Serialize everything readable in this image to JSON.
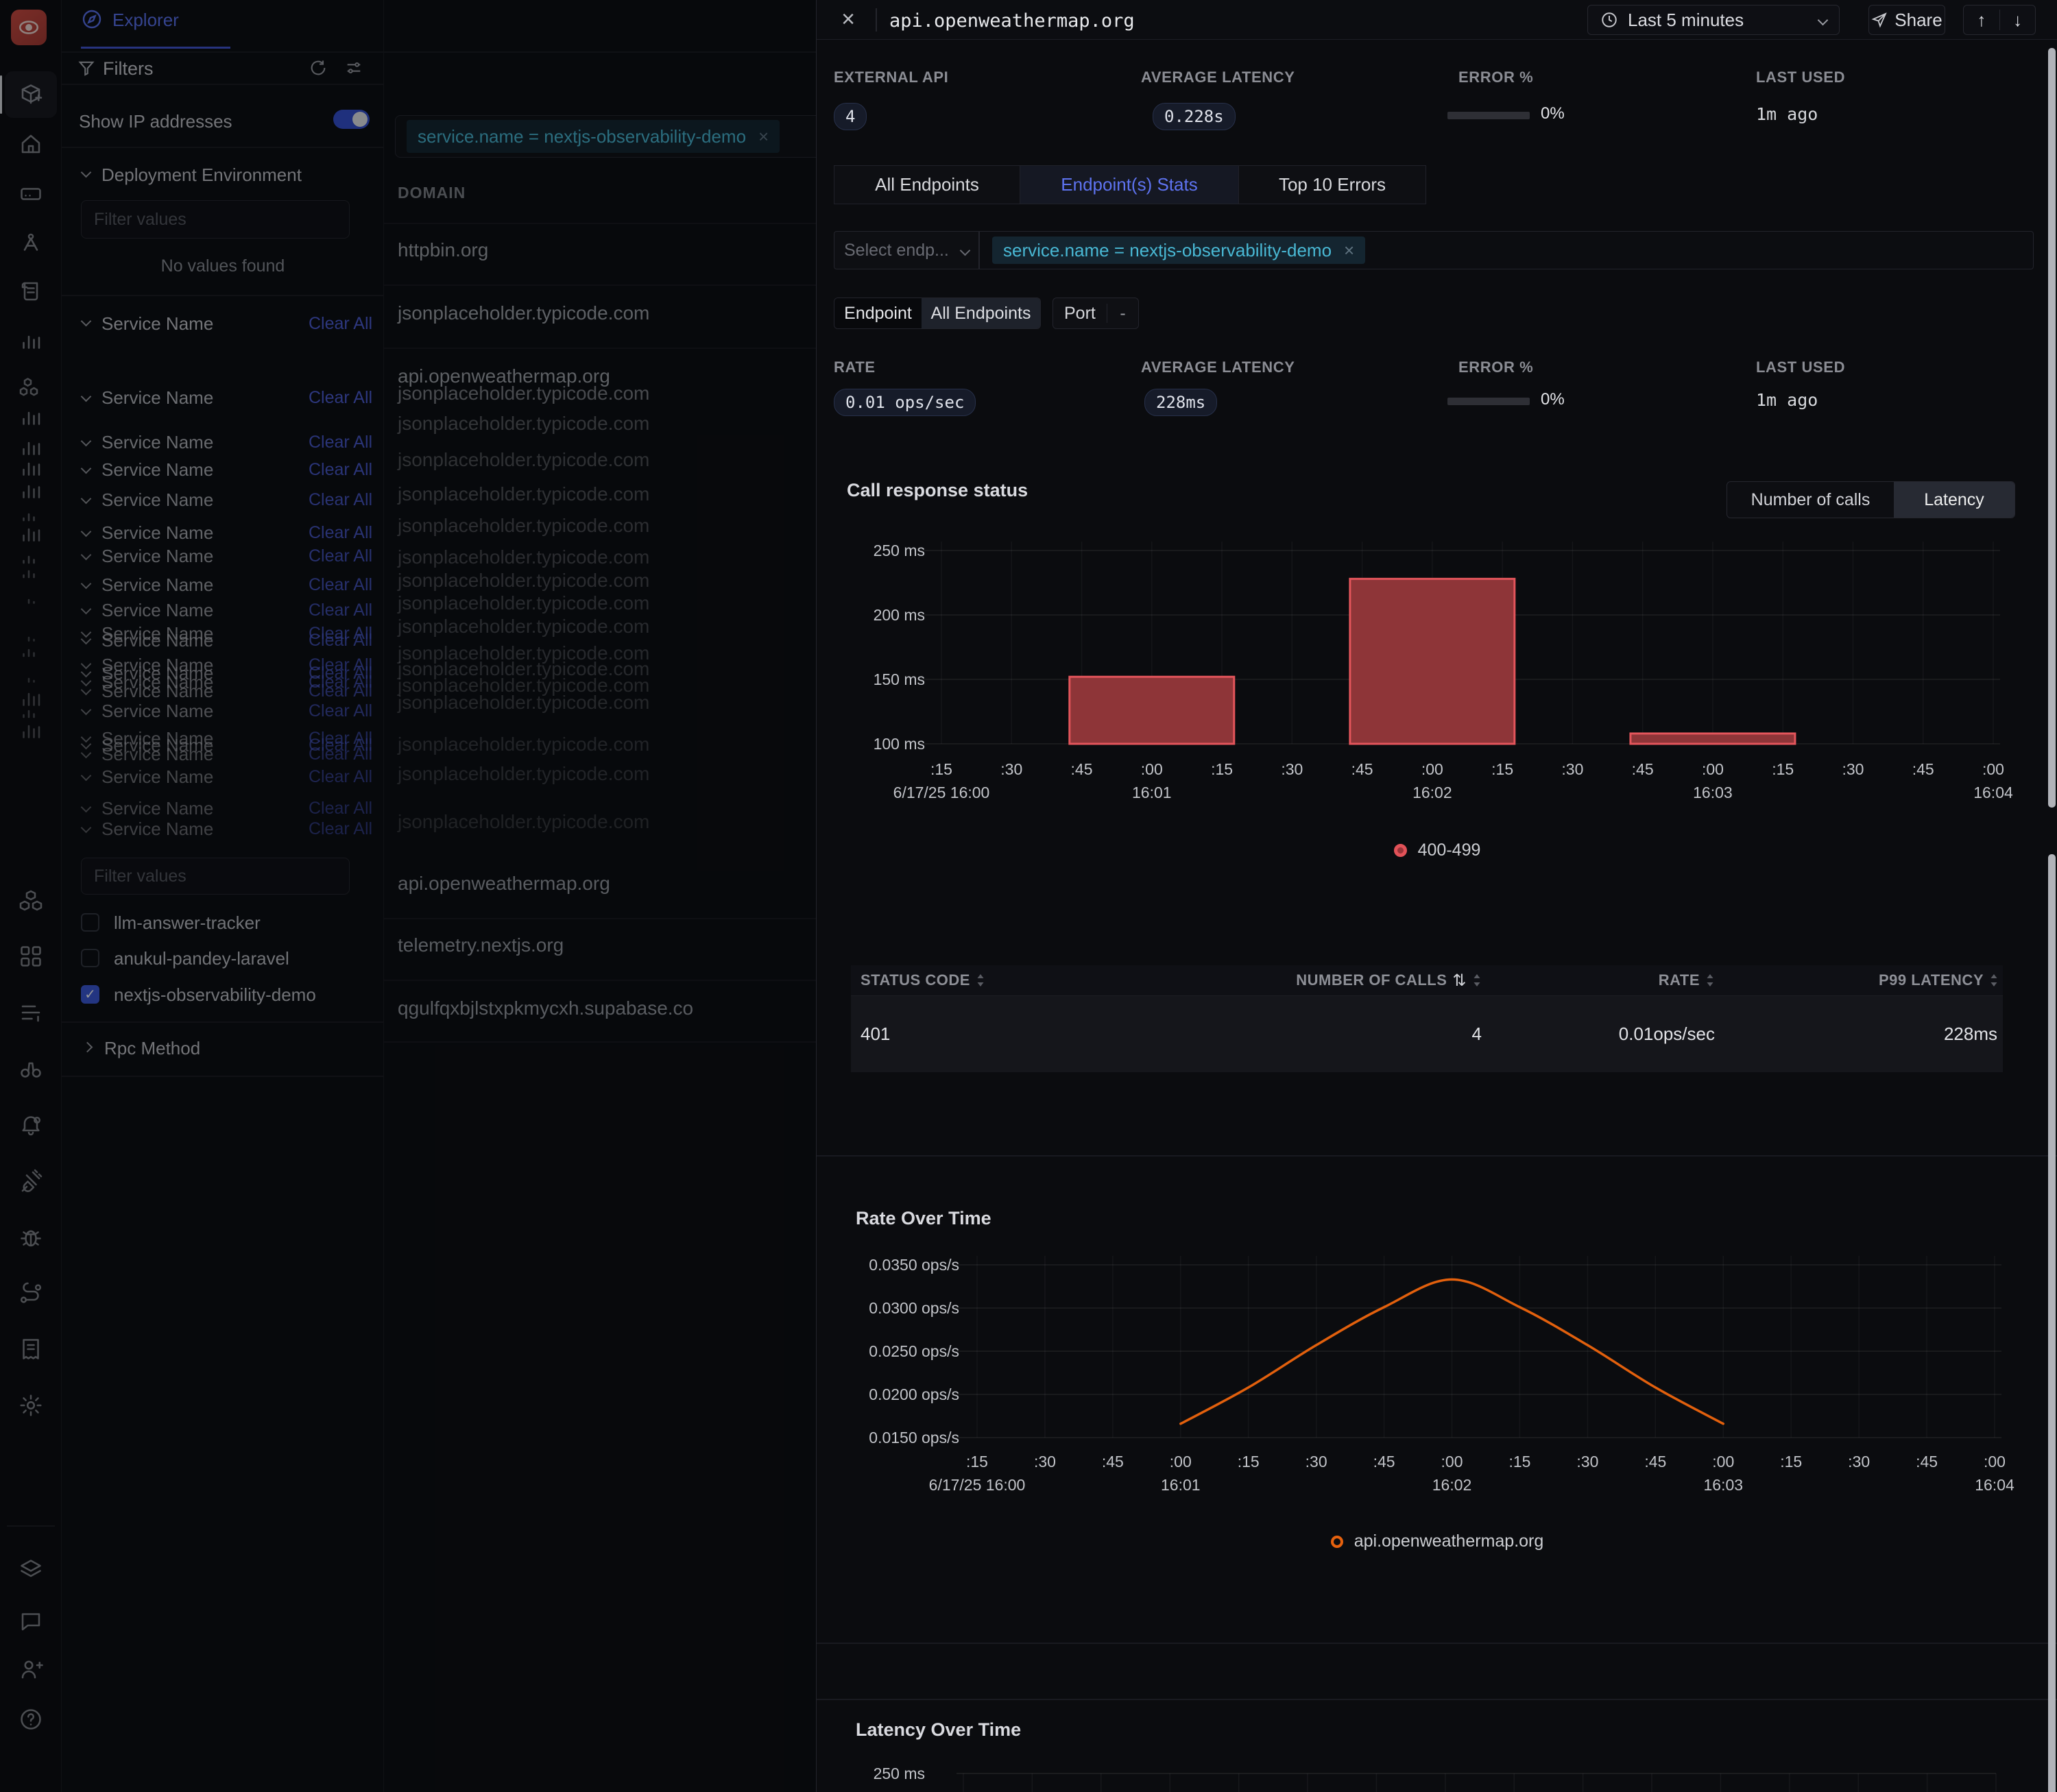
{
  "colors": {
    "accent_blue": "#4c5cd5",
    "cyan": "#49b8d4",
    "bar_fill": "#8e3538",
    "bar_stroke": "#e3555b",
    "orange_line": "#e2600d",
    "legend_dot_ring": "#e25258",
    "legend_dot_core": "#993439",
    "toggle_blue": "#3450d2",
    "checkbox_blue": "#3c59d9"
  },
  "rail": {
    "icons": [
      {
        "icon": "box-plus",
        "y": 110,
        "op": 1
      },
      {
        "icon": "home",
        "y": 182,
        "op": 0.9
      },
      {
        "icon": "server",
        "y": 255,
        "op": 0.9
      },
      {
        "icon": "route",
        "y": 326,
        "op": 0.9
      },
      {
        "icon": "scroll",
        "y": 397,
        "op": 0.9
      },
      {
        "icon": "bar-chart",
        "y": 469,
        "op": 0.9
      },
      {
        "icon": "hexagons",
        "y": 538,
        "op": 0.85
      },
      {
        "icon": "bar-chart",
        "y": 580,
        "op": 0.85
      },
      {
        "icon": "bar-chart",
        "y": 624,
        "op": 0.8
      },
      {
        "icon": "bar-chart",
        "y": 654,
        "op": 0.8
      },
      {
        "icon": "bar-chart",
        "y": 687,
        "op": 0.75
      },
      {
        "icon": "bar-partial",
        "y": 722,
        "op": 0.6
      },
      {
        "icon": "bar-chart",
        "y": 750,
        "op": 0.7
      },
      {
        "icon": "bar-partial",
        "y": 784,
        "op": 0.6
      },
      {
        "icon": "bar-partial",
        "y": 805,
        "op": 0.55
      },
      {
        "icon": "bar-dot",
        "y": 844,
        "op": 0.5
      },
      {
        "icon": "bar-dot",
        "y": 899,
        "op": 0.45
      },
      {
        "icon": "bar-partial",
        "y": 920,
        "op": 0.5
      },
      {
        "icon": "bar-dot",
        "y": 959,
        "op": 0.45
      },
      {
        "icon": "bar-chart",
        "y": 990,
        "op": 0.55
      },
      {
        "icon": "bar-partial",
        "y": 1009,
        "op": 0.5
      },
      {
        "icon": "bar-chart",
        "y": 1037,
        "op": 0.55
      },
      {
        "icon": "cubes",
        "y": 1287,
        "op": 0.9
      },
      {
        "icon": "grid",
        "y": 1367,
        "op": 0.9
      },
      {
        "icon": "rows",
        "y": 1449,
        "op": 0.9
      },
      {
        "icon": "binoculars",
        "y": 1532,
        "op": 0.9
      },
      {
        "icon": "bell",
        "y": 1612,
        "op": 0.9
      },
      {
        "icon": "plug",
        "y": 1694,
        "op": 0.9
      },
      {
        "icon": "bug",
        "y": 1777,
        "op": 0.9
      },
      {
        "icon": "route2",
        "y": 1859,
        "op": 0.9
      },
      {
        "icon": "receipt",
        "y": 1940,
        "op": 0.9
      },
      {
        "icon": "gear",
        "y": 2022,
        "op": 0.9
      },
      {
        "icon": "layers",
        "y": 2262,
        "op": 0.9
      },
      {
        "icon": "chat",
        "y": 2337,
        "op": 0.9
      },
      {
        "icon": "user-plus",
        "y": 2407,
        "op": 0.9
      },
      {
        "icon": "help",
        "y": 2480,
        "op": 0.9
      }
    ]
  },
  "filters": {
    "explorer_tab": "Explorer",
    "title": "Filters",
    "show_ip": "Show IP addresses",
    "deployment_env": "Deployment Environment",
    "filter_values_placeholder": "Filter values",
    "no_values": "No values found",
    "service_name_label": "Service Name",
    "clear_all_label": "Clear All",
    "rpc_method": "Rpc Method",
    "service_rows": [
      {
        "y": 563,
        "op": 1
      },
      {
        "y": 628,
        "op": 0.95
      },
      {
        "y": 668,
        "op": 0.95
      },
      {
        "y": 712,
        "op": 0.9
      },
      {
        "y": 760,
        "op": 0.9
      },
      {
        "y": 794,
        "op": 0.85
      },
      {
        "y": 836,
        "op": 0.85
      },
      {
        "y": 873,
        "op": 0.8
      },
      {
        "y": 907,
        "op": 0.8
      },
      {
        "y": 917,
        "op": 0.8
      },
      {
        "y": 953,
        "op": 0.75
      },
      {
        "y": 965,
        "op": 0.75
      },
      {
        "y": 978,
        "op": 0.7
      },
      {
        "y": 991,
        "op": 0.7
      },
      {
        "y": 1020,
        "op": 0.7
      },
      {
        "y": 1060,
        "op": 0.65
      },
      {
        "y": 1070,
        "op": 0.65
      },
      {
        "y": 1083,
        "op": 0.6
      },
      {
        "y": 1116,
        "op": 0.6
      },
      {
        "y": 1162,
        "op": 0.55
      },
      {
        "y": 1192,
        "op": 0.55
      }
    ],
    "checkboxes": [
      {
        "label": "llm-answer-tracker",
        "checked": false
      },
      {
        "label": "anukul-pandey-laravel",
        "checked": false
      },
      {
        "label": "nextjs-observability-demo",
        "checked": true
      }
    ]
  },
  "domains": {
    "header": "DOMAIN",
    "chip": "service.name = nextjs-observability-demo",
    "rows": [
      {
        "label": "httpbin.org",
        "y": 349,
        "op": 1
      },
      {
        "label": "jsonplaceholder.typicode.com",
        "y": 441,
        "op": 1
      },
      {
        "label": "api.openweathermap.org",
        "y": 533,
        "op": 1
      },
      {
        "label": "jsonplaceholder.typicode.com",
        "y": 558,
        "op": 0.75
      },
      {
        "label": "jsonplaceholder.typicode.com",
        "y": 602,
        "op": 0.5
      },
      {
        "label": "jsonplaceholder.typicode.com",
        "y": 655,
        "op": 0.45
      },
      {
        "label": "jsonplaceholder.typicode.com",
        "y": 705,
        "op": 0.45
      },
      {
        "label": "jsonplaceholder.typicode.com",
        "y": 751,
        "op": 0.42
      },
      {
        "label": "jsonplaceholder.typicode.com",
        "y": 797,
        "op": 0.4
      },
      {
        "label": "jsonplaceholder.typicode.com",
        "y": 831,
        "op": 0.4
      },
      {
        "label": "jsonplaceholder.typicode.com",
        "y": 864,
        "op": 0.38
      },
      {
        "label": "jsonplaceholder.typicode.com",
        "y": 898,
        "op": 0.38
      },
      {
        "label": "jsonplaceholder.typicode.com",
        "y": 937,
        "op": 0.36
      },
      {
        "label": "jsonplaceholder.typicode.com",
        "y": 960,
        "op": 0.36
      },
      {
        "label": "jsonplaceholder.typicode.com",
        "y": 984,
        "op": 0.34
      },
      {
        "label": "jsonplaceholder.typicode.com",
        "y": 1009,
        "op": 0.34
      },
      {
        "label": "jsonplaceholder.typicode.com",
        "y": 1070,
        "op": 0.3
      },
      {
        "label": "jsonplaceholder.typicode.com",
        "y": 1113,
        "op": 0.3
      },
      {
        "label": "jsonplaceholder.typicode.com",
        "y": 1183,
        "op": 0.28
      },
      {
        "label": "api.openweathermap.org",
        "y": 1273,
        "op": 0.95
      },
      {
        "label": "telemetry.nextjs.org",
        "y": 1363,
        "op": 0.95
      },
      {
        "label": "qgulfqxbjlstxpkmycxh.supabase.co",
        "y": 1455,
        "op": 0.95
      }
    ]
  },
  "drawer": {
    "close": "×",
    "title": "api.openweathermap.org",
    "time_range": "Last 5 minutes",
    "share": "Share",
    "up": "↑",
    "down": "↓",
    "stats1": [
      {
        "label": "EXTERNAL API",
        "value": "4"
      },
      {
        "label": "AVERAGE LATENCY",
        "value": "0.228s"
      },
      {
        "label": "ERROR %",
        "value": "0%"
      },
      {
        "label": "LAST USED",
        "value": "1m ago"
      }
    ],
    "tabs": [
      {
        "label": "All Endpoints"
      },
      {
        "label": "Endpoint(s) Stats"
      },
      {
        "label": "Top 10 Errors"
      }
    ],
    "select_placeholder": "Select endp...",
    "chip": "service.name = nextjs-observability-demo",
    "segmented": {
      "opt1": "Endpoint",
      "opt2": "All Endpoints",
      "port_label": "Port",
      "port_value": "-"
    },
    "stats2": [
      {
        "label": "RATE",
        "value": "0.01 ops/sec"
      },
      {
        "label": "AVERAGE LATENCY",
        "value": "228ms"
      },
      {
        "label": "ERROR %",
        "value": "0%"
      },
      {
        "label": "LAST USED",
        "value": "1m ago"
      }
    ],
    "response_section": {
      "title": "Call response status",
      "toggle": {
        "opt1": "Number of calls",
        "opt2": "Latency"
      },
      "legend": "400-499"
    },
    "table": {
      "headers": [
        {
          "label": "STATUS CODE"
        },
        {
          "label": "NUMBER OF CALLS",
          "extra": "⇅"
        },
        {
          "label": "RATE"
        },
        {
          "label": "P99 LATENCY"
        }
      ],
      "row": [
        "401",
        "4",
        "0.01ops/sec",
        "228ms"
      ]
    },
    "rate_section": {
      "title": "Rate Over Time",
      "legend": "api.openweathermap.org"
    },
    "latency_section": {
      "title": "Latency Over Time"
    }
  },
  "chart_data": [
    {
      "id": "call_response_status",
      "type": "bar",
      "title": "Call response status",
      "series_name": "400-499",
      "y_unit": "ms",
      "ylim": [
        100,
        250
      ],
      "y_ticks": [
        {
          "v": 250,
          "label": "250 ms"
        },
        {
          "v": 200,
          "label": "200 ms"
        },
        {
          "v": 150,
          "label": "150 ms"
        },
        {
          "v": 100,
          "label": "100 ms"
        }
      ],
      "x_ticks": [
        ":15",
        ":30",
        ":45",
        ":00",
        ":15",
        ":30",
        ":45",
        ":00",
        ":15",
        ":30",
        ":45",
        ":00",
        ":15",
        ":30",
        ":45",
        ":00"
      ],
      "x_dates": [
        {
          "i": 0,
          "label": "6/17/25 16:00"
        },
        {
          "i": 3,
          "label": "16:01"
        },
        {
          "i": 7,
          "label": "16:02"
        },
        {
          "i": 11,
          "label": "16:03"
        },
        {
          "i": 15,
          "label": "16:04"
        }
      ],
      "bars": [
        {
          "t": 3,
          "time": "16:01:00",
          "v": 152
        },
        {
          "t": 7,
          "time": "16:02:00",
          "v": 228
        },
        {
          "t": 11,
          "time": "16:03:00",
          "v": 108
        }
      ]
    },
    {
      "id": "rate_over_time",
      "type": "line",
      "title": "Rate Over Time",
      "series_name": "api.openweathermap.org",
      "y_unit": "ops/s",
      "ylim": [
        0.015,
        0.035
      ],
      "y_ticks": [
        {
          "v": 0.035,
          "label": "0.0350 ops/s"
        },
        {
          "v": 0.03,
          "label": "0.0300 ops/s"
        },
        {
          "v": 0.025,
          "label": "0.0250 ops/s"
        },
        {
          "v": 0.02,
          "label": "0.0200 ops/s"
        },
        {
          "v": 0.015,
          "label": "0.0150 ops/s"
        }
      ],
      "x_ticks": [
        ":15",
        ":30",
        ":45",
        ":00",
        ":15",
        ":30",
        ":45",
        ":00",
        ":15",
        ":30",
        ":45",
        ":00",
        ":15",
        ":30",
        ":45",
        ":00"
      ],
      "x_dates": [
        {
          "i": 0,
          "label": "6/17/25 16:00"
        },
        {
          "i": 3,
          "label": "16:01"
        },
        {
          "i": 7,
          "label": "16:02"
        },
        {
          "i": 11,
          "label": "16:03"
        },
        {
          "i": 15,
          "label": "16:04"
        }
      ],
      "points": [
        {
          "t": 3,
          "time": "16:01:00",
          "v": 0.0166
        },
        {
          "t": 4,
          "time": "16:01:15",
          "v": 0.0208
        },
        {
          "t": 5,
          "time": "16:01:30",
          "v": 0.0257
        },
        {
          "t": 6,
          "time": "16:01:45",
          "v": 0.0301
        },
        {
          "t": 7,
          "time": "16:02:00",
          "v": 0.0333
        },
        {
          "t": 8,
          "time": "16:02:15",
          "v": 0.0301
        },
        {
          "t": 9,
          "time": "16:02:30",
          "v": 0.0257
        },
        {
          "t": 10,
          "time": "16:02:45",
          "v": 0.0208
        },
        {
          "t": 11,
          "time": "16:03:00",
          "v": 0.0166
        }
      ]
    },
    {
      "id": "latency_over_time",
      "type": "axis-stub",
      "title": "Latency Over Time",
      "truncated": true,
      "y_ticks": [
        {
          "v": 250,
          "label": "250 ms"
        }
      ]
    }
  ]
}
